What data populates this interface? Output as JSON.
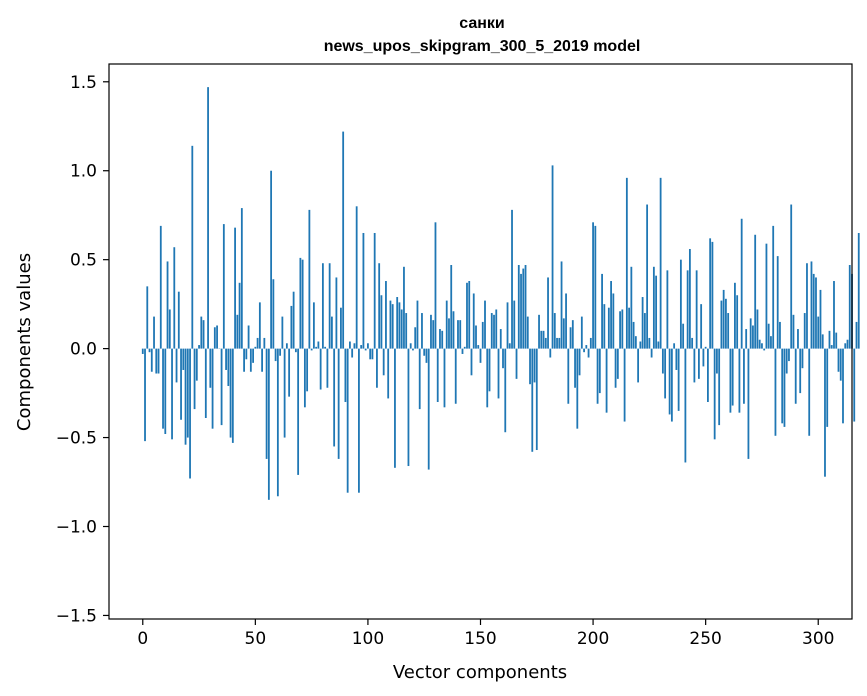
{
  "chart_data": {
    "type": "bar",
    "title": "санки",
    "subtitle": "news_upos_skipgram_300_5_2019 model",
    "xlabel": "Vector components",
    "ylabel": "Components values",
    "xlim": [
      -15,
      315
    ],
    "ylim": [
      -1.52,
      1.6
    ],
    "xticks": [
      0,
      50,
      100,
      150,
      200,
      250,
      300
    ],
    "xtick_labels": [
      "0",
      "50",
      "100",
      "150",
      "200",
      "250",
      "300"
    ],
    "yticks": [
      -1.5,
      -1.0,
      -0.5,
      0.0,
      0.5,
      1.0,
      1.5
    ],
    "ytick_labels": [
      "−1.5",
      "−1.0",
      "−0.5",
      "0.0",
      "0.5",
      "1.0",
      "1.5"
    ],
    "grid": false,
    "bar_color": "#1f77b4",
    "x_start": 0,
    "values": [
      -0.03,
      -0.52,
      0.35,
      -0.02,
      -0.13,
      0.18,
      -0.14,
      -0.14,
      0.69,
      -0.45,
      -0.48,
      0.49,
      0.22,
      -0.51,
      0.57,
      -0.19,
      0.32,
      -0.4,
      -0.12,
      -0.54,
      -0.5,
      -0.73,
      1.14,
      -0.34,
      -0.18,
      0.02,
      0.18,
      0.16,
      -0.39,
      1.47,
      -0.22,
      -0.45,
      0.12,
      0.13,
      0.0,
      -0.43,
      0.7,
      -0.12,
      -0.21,
      -0.5,
      -0.53,
      0.68,
      0.19,
      0.37,
      0.79,
      -0.13,
      -0.06,
      0.13,
      -0.13,
      -0.08,
      0.01,
      0.06,
      0.26,
      -0.13,
      0.06,
      -0.62,
      -0.85,
      1.0,
      0.39,
      -0.07,
      -0.83,
      -0.04,
      0.18,
      -0.5,
      0.03,
      -0.27,
      0.24,
      0.32,
      -0.02,
      -0.71,
      0.51,
      0.5,
      -0.33,
      -0.24,
      0.78,
      -0.01,
      0.26,
      0.01,
      0.04,
      -0.23,
      0.48,
      0.01,
      -0.22,
      0.48,
      0.18,
      -0.55,
      0.4,
      -0.62,
      0.23,
      1.22,
      -0.3,
      -0.81,
      0.04,
      -0.05,
      0.03,
      0.8,
      -0.81,
      0.02,
      0.65,
      -0.01,
      0.03,
      -0.06,
      -0.06,
      0.65,
      -0.22,
      0.48,
      0.3,
      -0.15,
      0.38,
      -0.28,
      0.27,
      0.25,
      -0.67,
      0.29,
      0.26,
      0.22,
      0.46,
      0.2,
      -0.66,
      0.03,
      -0.01,
      0.12,
      0.27,
      -0.34,
      0.2,
      -0.04,
      -0.08,
      -0.68,
      0.19,
      0.16,
      0.71,
      -0.3,
      0.11,
      0.1,
      -0.33,
      0.27,
      0.17,
      0.47,
      0.21,
      -0.31,
      0.16,
      0.16,
      -0.03,
      0.01,
      0.37,
      0.38,
      -0.15,
      0.31,
      0.13,
      0.02,
      -0.08,
      0.15,
      0.27,
      -0.33,
      -0.24,
      0.2,
      0.19,
      0.22,
      -0.28,
      0.11,
      -0.11,
      -0.47,
      0.26,
      0.03,
      0.78,
      0.27,
      -0.17,
      0.47,
      0.42,
      0.45,
      0.47,
      0.18,
      -0.2,
      -0.58,
      -0.19,
      -0.57,
      0.19,
      0.1,
      0.1,
      0.06,
      0.4,
      -0.05,
      1.03,
      0.2,
      0.06,
      0.06,
      0.49,
      0.17,
      0.31,
      -0.31,
      0.12,
      0.16,
      -0.22,
      -0.45,
      -0.15,
      0.18,
      -0.02,
      0.02,
      -0.05,
      0.06,
      0.71,
      0.69,
      -0.31,
      -0.25,
      0.42,
      0.25,
      -0.36,
      0.23,
      0.38,
      0.31,
      -0.22,
      -0.17,
      0.21,
      0.22,
      -0.41,
      0.96,
      0.23,
      0.46,
      0.15,
      0.07,
      -0.19,
      0.04,
      0.29,
      0.2,
      0.81,
      0.06,
      -0.05,
      0.46,
      0.41,
      0.04,
      0.96,
      -0.14,
      -0.28,
      0.44,
      -0.37,
      -0.41,
      0.03,
      -0.12,
      -0.35,
      0.5,
      0.14,
      -0.64,
      0.44,
      0.56,
      0.06,
      -0.19,
      0.44,
      -0.17,
      0.25,
      -0.1,
      0.01,
      -0.3,
      0.62,
      0.6,
      -0.51,
      -0.14,
      -0.43,
      0.27,
      0.33,
      0.28,
      0.2,
      -0.36,
      -0.32,
      0.37,
      0.3,
      -0.36,
      0.73,
      -0.31,
      0.11,
      -0.62,
      0.17,
      0.13,
      0.64,
      0.22,
      0.05,
      0.03,
      -0.01,
      0.59,
      0.14,
      0.07,
      0.69,
      -0.49,
      0.52,
      0.15,
      -0.42,
      -0.44,
      -0.14,
      -0.07,
      0.81,
      0.19,
      -0.31,
      0.11,
      -0.25,
      -0.11,
      0.2,
      0.48,
      -0.49,
      0.49,
      0.42,
      0.4,
      0.18,
      0.33,
      0.08,
      -0.72,
      -0.44,
      0.1,
      0.02,
      0.38,
      0.09,
      -0.13,
      -0.18,
      -0.42,
      0.03,
      0.05,
      0.47,
      0.42,
      -0.41,
      0.15,
      0.65
    ]
  }
}
